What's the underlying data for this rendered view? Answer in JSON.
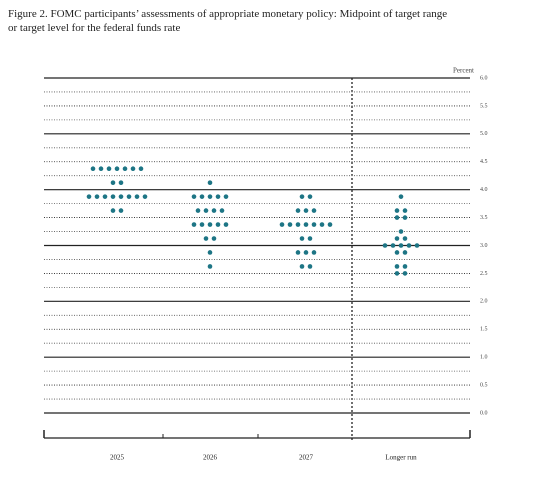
{
  "chart_data": {
    "type": "dotplot",
    "title": "Figure 2.  FOMC participants’ assessments of appropriate monetary policy: Midpoint of target range or target level for the federal funds rate",
    "y_unit": "Percent",
    "color": "#1d7585",
    "ylim": [
      0,
      6
    ],
    "yticks": [
      {
        "value": 0,
        "label": "0.0"
      },
      {
        "value": 0.5,
        "label": "0.5"
      },
      {
        "value": 1,
        "label": "1.0"
      },
      {
        "value": 1.5,
        "label": "1.5"
      },
      {
        "value": 2,
        "label": "2.0"
      },
      {
        "value": 2.5,
        "label": "2.5"
      },
      {
        "value": 3,
        "label": "3.0"
      },
      {
        "value": 3.5,
        "label": "3.5"
      },
      {
        "value": 4,
        "label": "4.0"
      },
      {
        "value": 4.5,
        "label": "4.5"
      },
      {
        "value": 5,
        "label": "5.0"
      },
      {
        "value": 5.5,
        "label": "5.5"
      },
      {
        "value": 6,
        "label": "6.0"
      }
    ],
    "minor_yticks": [
      0.25,
      0.75,
      1.25,
      1.75,
      2.25,
      2.75,
      3.25,
      3.75,
      4.25,
      4.75,
      5.25,
      5.75
    ],
    "categories": [
      "2025",
      "2026",
      "2027",
      "Longer run"
    ],
    "columns": [
      [
        {
          "value": 4.375,
          "count": 7
        },
        {
          "value": 4.125,
          "count": 2
        },
        {
          "value": 3.875,
          "count": 8
        },
        {
          "value": 3.625,
          "count": 2
        }
      ],
      [
        {
          "value": 4.125,
          "count": 1
        },
        {
          "value": 3.875,
          "count": 5
        },
        {
          "value": 3.625,
          "count": 4
        },
        {
          "value": 3.375,
          "count": 5
        },
        {
          "value": 3.125,
          "count": 2
        },
        {
          "value": 2.875,
          "count": 1
        },
        {
          "value": 2.625,
          "count": 1
        }
      ],
      [
        {
          "value": 3.875,
          "count": 2
        },
        {
          "value": 3.625,
          "count": 3
        },
        {
          "value": 3.375,
          "count": 7
        },
        {
          "value": 3.125,
          "count": 2
        },
        {
          "value": 2.875,
          "count": 3
        },
        {
          "value": 2.625,
          "count": 2
        }
      ],
      [
        {
          "value": 3.875,
          "count": 1
        },
        {
          "value": 3.625,
          "count": 2
        },
        {
          "value": 3.5,
          "count": 2
        },
        {
          "value": 3.25,
          "count": 1
        },
        {
          "value": 3.125,
          "count": 2
        },
        {
          "value": 3,
          "count": 5
        },
        {
          "value": 2.875,
          "count": 2
        },
        {
          "value": 2.625,
          "count": 2
        },
        {
          "value": 2.5,
          "count": 2
        }
      ]
    ]
  }
}
